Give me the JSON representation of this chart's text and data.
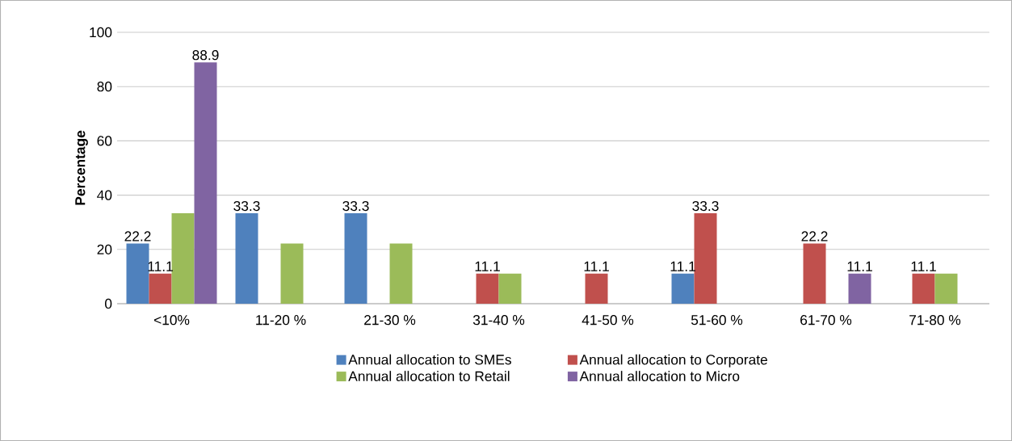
{
  "chart_data": {
    "type": "bar",
    "ylabel": "Percentage",
    "categories": [
      "<10%",
      "11-20 %",
      "21-30 %",
      "31-40 %",
      "41-50 %",
      "51-60 %",
      "61-70 %",
      "71-80 %"
    ],
    "series": [
      {
        "name": "Annual allocation to SMEs",
        "color": "#4f81bd",
        "values": [
          22.2,
          33.3,
          33.3,
          null,
          null,
          11.1,
          null,
          null
        ],
        "value_labels": [
          "22.2",
          "33.3",
          "33.3",
          null,
          null,
          "11.1",
          null,
          null
        ]
      },
      {
        "name": "Annual allocation to Corporate",
        "color": "#c0504d",
        "values": [
          11.1,
          null,
          null,
          11.1,
          11.1,
          33.3,
          22.2,
          11.1
        ],
        "value_labels": [
          "11.1",
          null,
          null,
          "11.1",
          "11.1",
          "33.3",
          "22.2",
          "11.1"
        ]
      },
      {
        "name": "Annual allocation to Retail",
        "color": "#9bbb59",
        "values": [
          33.3,
          22.2,
          22.2,
          11.1,
          null,
          null,
          null,
          11.1
        ],
        "value_labels": [
          null,
          null,
          null,
          null,
          null,
          null,
          null,
          null
        ]
      },
      {
        "name": "Annual allocation to Micro",
        "color": "#8064a2",
        "values": [
          88.9,
          null,
          null,
          null,
          null,
          null,
          11.1,
          null
        ],
        "value_labels": [
          "88.9",
          null,
          null,
          null,
          null,
          null,
          "11.1",
          null
        ]
      }
    ],
    "ylim": [
      0,
      100
    ],
    "yticks": [
      0,
      20,
      40,
      60,
      80,
      100
    ],
    "grid": "y",
    "legend": "bottom"
  }
}
